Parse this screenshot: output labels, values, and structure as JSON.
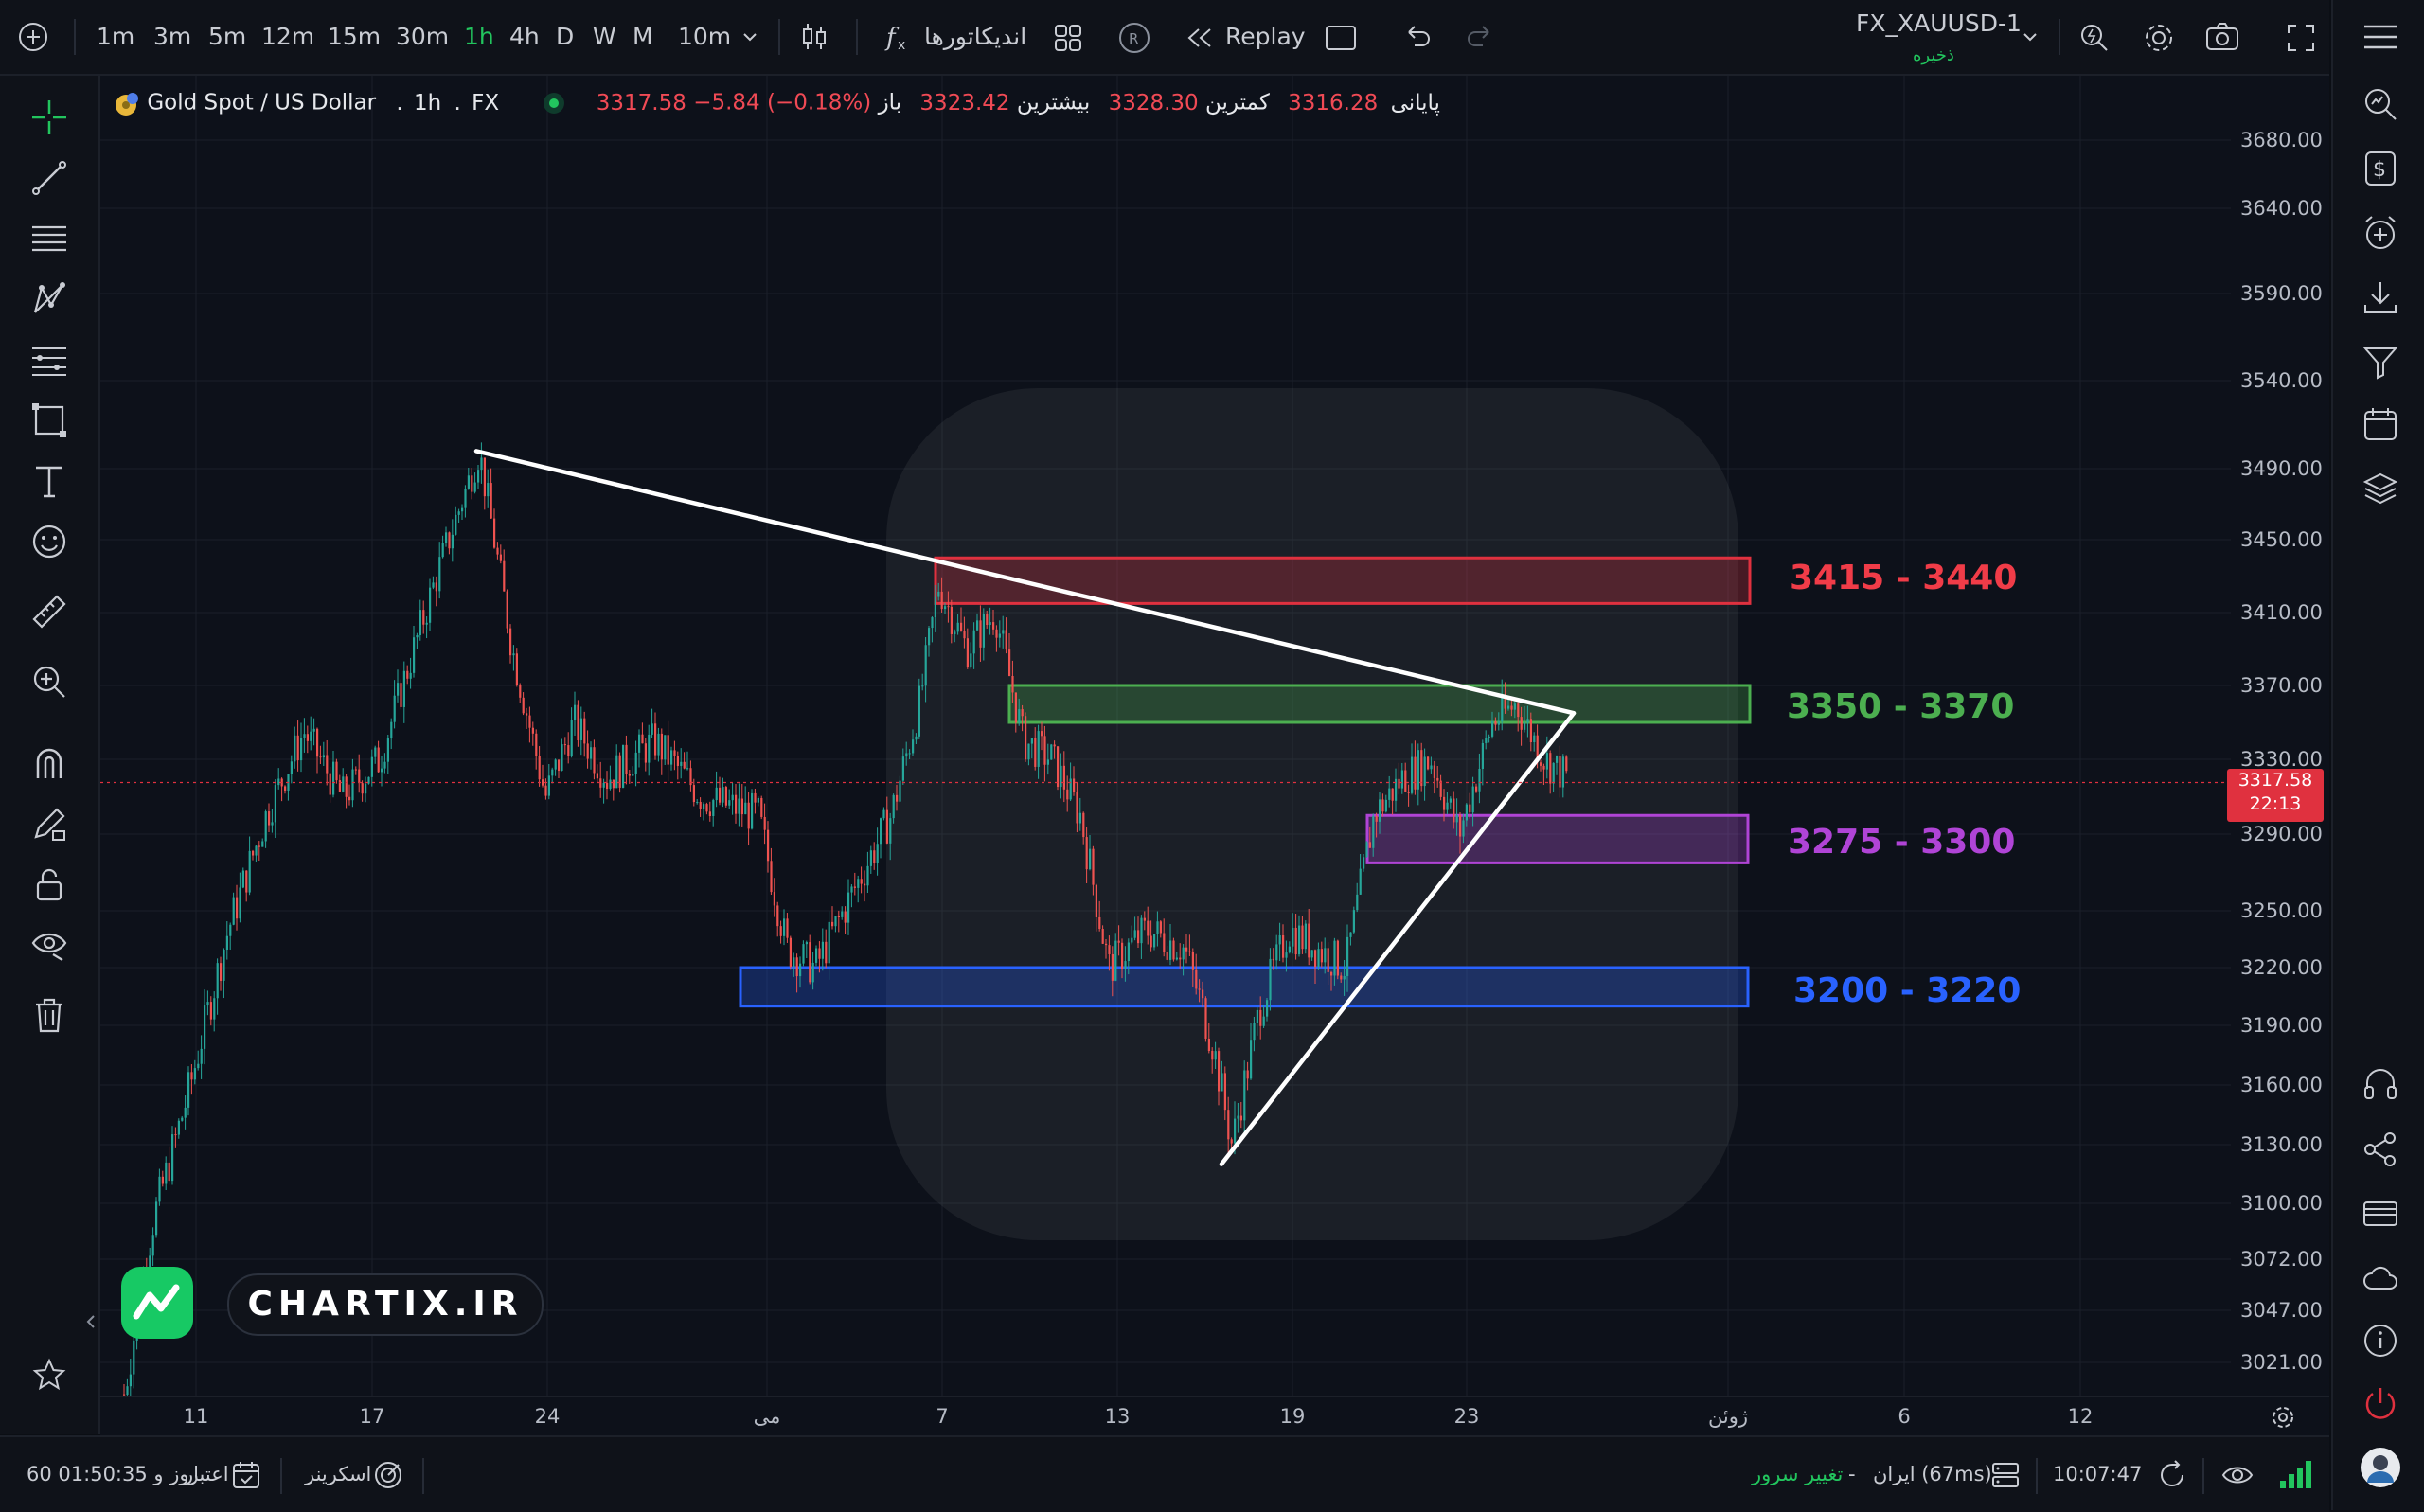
{
  "toolbar": {
    "timeframes": [
      "1m",
      "3m",
      "5m",
      "12m",
      "15m",
      "30m",
      "1h",
      "4h",
      "D",
      "W",
      "M",
      "10m"
    ],
    "active_timeframe": "1h",
    "indicators_label": "اندیکاتورها",
    "replay_label": "Replay",
    "symbol": "FX_XAUUSD-1",
    "save_status": "ذخیره"
  },
  "legend": {
    "title": "Gold Spot / US Dollar",
    "interval": "1h",
    "source": "FX",
    "open_label": "باز",
    "open_value": "3323.42",
    "high_label": "بیشترین",
    "high_value": "3328.30",
    "low_label": "کمترین",
    "low_value": "3316.28",
    "close_label": "پایانی",
    "close_value": "3317.58",
    "change": "−5.84 (−0.18%)"
  },
  "price_axis": {
    "labels": [
      "3680.00",
      "3640.00",
      "3590.00",
      "3540.00",
      "3490.00",
      "3450.00",
      "3410.00",
      "3370.00",
      "3330.00",
      "3290.00",
      "3250.00",
      "3220.00",
      "3190.00",
      "3160.00",
      "3130.00",
      "3100.00",
      "3072.00",
      "3047.00",
      "3021.00"
    ],
    "current_price": "3317.58",
    "countdown": "22:13"
  },
  "time_axis": {
    "labels": [
      "11",
      "17",
      "24",
      "می",
      "7",
      "13",
      "19",
      "23",
      "ژوئن",
      "6",
      "12"
    ]
  },
  "zones": [
    {
      "label": "3415 - 3440",
      "low": 3415,
      "high": 3440,
      "color": "#e0313f"
    },
    {
      "label": "3350 - 3370",
      "low": 3350,
      "high": 3370,
      "color": "#4caf50"
    },
    {
      "label": "3275 - 3300",
      "low": 3275,
      "high": 3300,
      "color": "#b044d6"
    },
    {
      "label": "3200 - 3220",
      "low": 3200,
      "high": 3220,
      "color": "#2962ff"
    }
  ],
  "watermark": {
    "text": "CHARTIX.IR"
  },
  "bottom_bar": {
    "account_prefix": "اعتبار",
    "account_days": "60 روز و 01:50:35",
    "screener_label": "اسکرینر",
    "server_change_label": "تغییر سرور",
    "server_name": "ایران (67ms)",
    "server_separator": "-",
    "clock": "10:07:47"
  },
  "chart_data": {
    "type": "line",
    "symbol": "XAUUSD",
    "title": "Gold Spot / US Dollar",
    "interval": "1h",
    "x": [
      "11",
      "17",
      "24",
      "می",
      "7",
      "13",
      "19",
      "23"
    ],
    "series": [
      {
        "values": [
          3210,
          3340,
          3300,
          3280,
          3420,
          3230,
          3240,
          3340
        ]
      }
    ],
    "trendlines": [
      {
        "from": {
          "x": "20",
          "y": 3500
        },
        "to": {
          "x": "26",
          "y": 3355
        }
      },
      {
        "from": {
          "x": "16",
          "y": 3120
        },
        "to": {
          "x": "26",
          "y": 3355
        }
      }
    ],
    "last_price": 3317.58,
    "ylim": [
      3000,
      3700
    ],
    "grid": true
  }
}
